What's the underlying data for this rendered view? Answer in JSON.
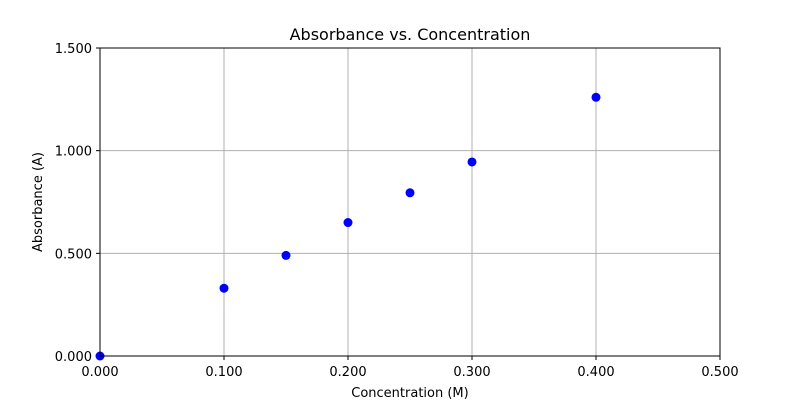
{
  "chart_data": {
    "type": "scatter",
    "title": "Absorbance vs. Concentration",
    "xlabel": "Concentration (M)",
    "ylabel": "Absorbance (A)",
    "xlim": [
      0,
      0.5
    ],
    "ylim": [
      0,
      1.5
    ],
    "xticks": [
      0,
      0.1,
      0.2,
      0.3,
      0.4,
      0.5
    ],
    "yticks": [
      0,
      0.5,
      1.0,
      1.5
    ],
    "xtick_labels": [
      "0.000",
      "0.100",
      "0.200",
      "0.300",
      "0.400",
      "0.500"
    ],
    "ytick_labels": [
      "0.000",
      "0.500",
      "1.000",
      "1.500"
    ],
    "grid": true,
    "series": [
      {
        "color": "#0000ff",
        "marker": "circle",
        "x": [
          0.0,
          0.1,
          0.15,
          0.2,
          0.25,
          0.3,
          0.4
        ],
        "y": [
          0.0,
          0.33,
          0.49,
          0.65,
          0.795,
          0.945,
          1.26
        ]
      }
    ]
  }
}
